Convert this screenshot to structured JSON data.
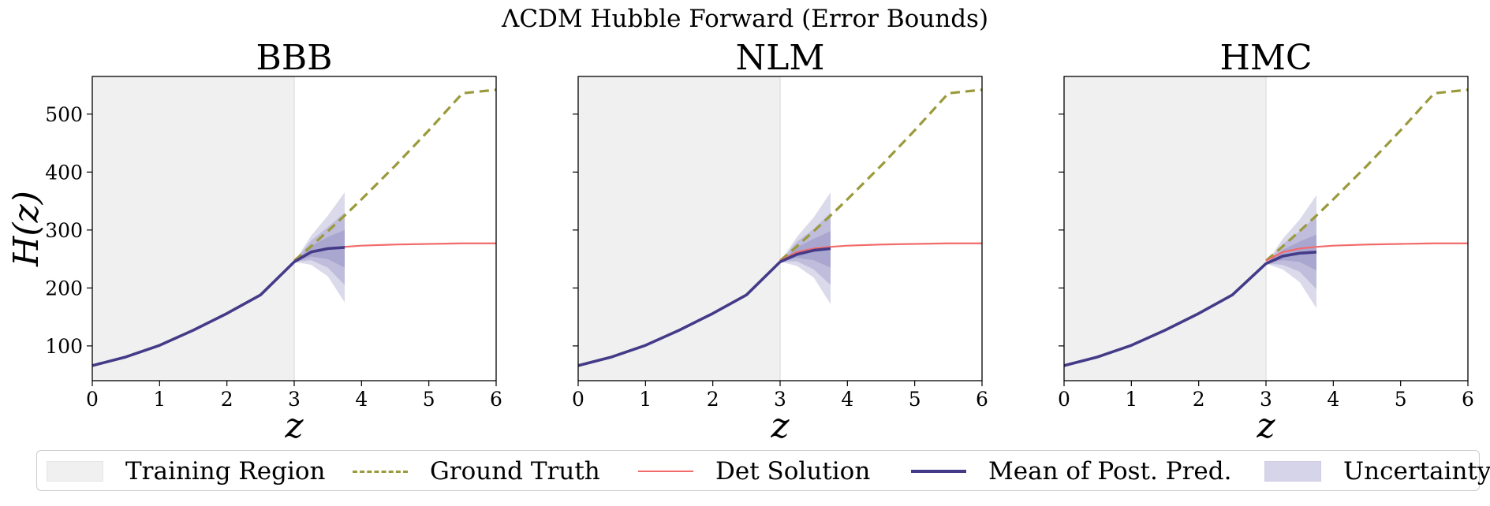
{
  "figure": {
    "title": "ΛCDM Hubble Forward (Error Bounds)"
  },
  "colors": {
    "training": "#f0f0f0",
    "ground_truth": "#9a9a3c",
    "det_solution": "#f26b6b",
    "mean_post": "#433b88",
    "uncertainty": "#5b57a6"
  },
  "chart_data": [
    {
      "type": "line",
      "title": "BBB",
      "xlabel": "z",
      "ylabel": "H(z)",
      "xlim": [
        0,
        6
      ],
      "ylim": [
        40,
        565
      ],
      "xticks": [
        0,
        1,
        2,
        3,
        4,
        5,
        6
      ],
      "yticks": [
        100,
        200,
        300,
        400,
        500
      ],
      "training_region": [
        0,
        3
      ],
      "series": [
        {
          "name": "Ground Truth",
          "style": "dashed",
          "x": [
            3.0,
            3.25,
            3.5,
            3.75,
            4.0,
            4.5,
            5.0,
            5.5,
            6.0
          ],
          "y": [
            247,
            272,
            298,
            325,
            353,
            411,
            472,
            536,
            542
          ]
        },
        {
          "name": "Det Solution",
          "style": "solid",
          "x": [
            3.0,
            3.25,
            3.5,
            3.75,
            4.0,
            4.5,
            5.0,
            5.5,
            6.0
          ],
          "y": [
            247,
            262,
            268,
            271,
            273,
            275,
            276,
            277,
            277
          ]
        },
        {
          "name": "Mean of Post. Pred.",
          "style": "solid",
          "x": [
            0.0,
            0.5,
            1.0,
            1.5,
            2.0,
            2.5,
            3.0,
            3.25,
            3.5,
            3.75
          ],
          "y": [
            66,
            81,
            101,
            127,
            156,
            188,
            245,
            262,
            268,
            270
          ]
        }
      ],
      "uncertainty": {
        "x": [
          3.0,
          3.25,
          3.5,
          3.75
        ],
        "bands": [
          {
            "lower": [
              245,
              240,
              220,
              175
            ],
            "upper": [
              245,
              290,
              325,
              365
            ]
          },
          {
            "lower": [
              245,
              248,
              235,
              205
            ],
            "upper": [
              245,
              282,
              305,
              330
            ]
          },
          {
            "lower": [
              245,
              254,
              250,
              235
            ],
            "upper": [
              245,
              272,
              288,
              300
            ]
          }
        ]
      }
    },
    {
      "type": "line",
      "title": "NLM",
      "xlabel": "z",
      "ylabel": "",
      "xlim": [
        0,
        6
      ],
      "ylim": [
        40,
        565
      ],
      "xticks": [
        0,
        1,
        2,
        3,
        4,
        5,
        6
      ],
      "yticks": [
        100,
        200,
        300,
        400,
        500
      ],
      "training_region": [
        0,
        3
      ],
      "series": [
        {
          "name": "Ground Truth",
          "style": "dashed",
          "x": [
            3.0,
            3.25,
            3.5,
            3.75,
            4.0,
            4.5,
            5.0,
            5.5,
            6.0
          ],
          "y": [
            247,
            272,
            298,
            325,
            353,
            411,
            472,
            536,
            542
          ]
        },
        {
          "name": "Det Solution",
          "style": "solid",
          "x": [
            3.0,
            3.25,
            3.5,
            3.75,
            4.0,
            4.5,
            5.0,
            5.5,
            6.0
          ],
          "y": [
            247,
            262,
            268,
            271,
            273,
            275,
            276,
            277,
            277
          ]
        },
        {
          "name": "Mean of Post. Pred.",
          "style": "solid",
          "x": [
            0.0,
            0.5,
            1.0,
            1.5,
            2.0,
            2.5,
            3.0,
            3.25,
            3.5,
            3.75
          ],
          "y": [
            66,
            81,
            101,
            127,
            156,
            188,
            245,
            258,
            265,
            268
          ]
        }
      ],
      "uncertainty": {
        "x": [
          3.0,
          3.25,
          3.5,
          3.75
        ],
        "bands": [
          {
            "lower": [
              245,
              238,
              218,
              172
            ],
            "upper": [
              245,
              288,
              322,
              365
            ]
          },
          {
            "lower": [
              245,
              246,
              232,
              205
            ],
            "upper": [
              245,
              280,
              302,
              330
            ]
          },
          {
            "lower": [
              245,
              252,
              248,
              235
            ],
            "upper": [
              245,
              270,
              285,
              298
            ]
          }
        ]
      }
    },
    {
      "type": "line",
      "title": "HMC",
      "xlabel": "z",
      "ylabel": "",
      "xlim": [
        0,
        6
      ],
      "ylim": [
        40,
        565
      ],
      "xticks": [
        0,
        1,
        2,
        3,
        4,
        5,
        6
      ],
      "yticks": [
        100,
        200,
        300,
        400,
        500
      ],
      "training_region": [
        0,
        3
      ],
      "series": [
        {
          "name": "Ground Truth",
          "style": "dashed",
          "x": [
            3.0,
            3.25,
            3.5,
            3.75,
            4.0,
            4.5,
            5.0,
            5.5,
            6.0
          ],
          "y": [
            247,
            272,
            298,
            325,
            353,
            411,
            472,
            536,
            542
          ]
        },
        {
          "name": "Det Solution",
          "style": "solid",
          "x": [
            3.0,
            3.25,
            3.5,
            3.75,
            4.0,
            4.5,
            5.0,
            5.5,
            6.0
          ],
          "y": [
            247,
            262,
            268,
            271,
            273,
            275,
            276,
            277,
            277
          ]
        },
        {
          "name": "Mean of Post. Pred.",
          "style": "solid",
          "x": [
            0.0,
            0.5,
            1.0,
            1.5,
            2.0,
            2.5,
            3.0,
            3.25,
            3.5,
            3.75
          ],
          "y": [
            66,
            81,
            101,
            127,
            156,
            188,
            242,
            255,
            260,
            262
          ]
        }
      ],
      "uncertainty": {
        "x": [
          3.0,
          3.25,
          3.5,
          3.75
        ],
        "bands": [
          {
            "lower": [
              242,
              232,
              210,
              165
            ],
            "upper": [
              242,
              285,
              318,
              360
            ]
          },
          {
            "lower": [
              242,
              240,
              228,
              198
            ],
            "upper": [
              242,
              276,
              298,
              325
            ]
          },
          {
            "lower": [
              242,
              248,
              245,
              230
            ],
            "upper": [
              242,
              266,
              280,
              292
            ]
          }
        ]
      }
    }
  ],
  "legend": {
    "items": [
      {
        "label": "Training Region",
        "kind": "patch",
        "color": "#f0f0f0"
      },
      {
        "label": "Ground Truth",
        "kind": "dashed",
        "color": "#9a9a3c"
      },
      {
        "label": "Det Solution",
        "kind": "line",
        "color": "#f26b6b"
      },
      {
        "label": "Mean of Post. Pred.",
        "kind": "line",
        "color": "#433b88"
      },
      {
        "label": "Uncertainty",
        "kind": "patch",
        "color": "#d6d4e8"
      }
    ]
  }
}
